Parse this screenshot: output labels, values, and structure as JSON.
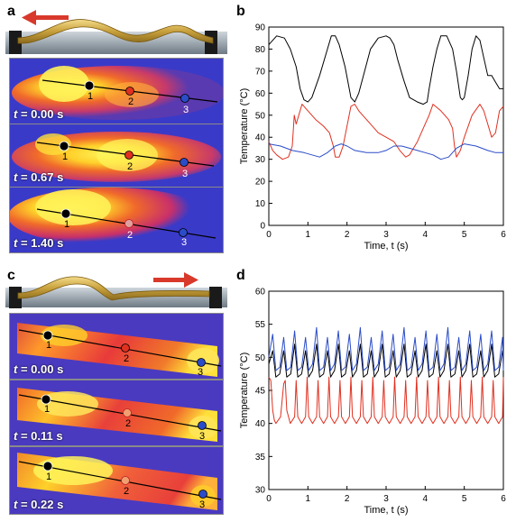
{
  "panels": {
    "a": {
      "label": "a",
      "frames": [
        {
          "time": "t = 0.00 s",
          "point_labels": [
            "1",
            "2",
            "3"
          ]
        },
        {
          "time": "t = 0.67 s",
          "point_labels": [
            "1",
            "2",
            "3"
          ]
        },
        {
          "time": "t = 1.40 s",
          "point_labels": [
            "1",
            "2",
            "3"
          ]
        }
      ]
    },
    "b": {
      "label": "b"
    },
    "c": {
      "label": "c",
      "frames": [
        {
          "time": "t = 0.00 s",
          "point_labels": [
            "1",
            "2",
            "3"
          ]
        },
        {
          "time": "t = 0.11 s",
          "point_labels": [
            "1",
            "2",
            "3"
          ]
        },
        {
          "time": "t = 0.22 s",
          "point_labels": [
            "1",
            "2",
            "3"
          ]
        }
      ]
    },
    "d": {
      "label": "d"
    }
  },
  "colors": {
    "point1": "#000000",
    "point2": "#e03020",
    "point3": "#2a4cc8"
  },
  "chart_data": [
    {
      "panel": "b",
      "type": "line",
      "xlabel": "Time, t (s)",
      "ylabel": "Temperature (°C)",
      "xlim": [
        0,
        6
      ],
      "ylim": [
        0,
        90
      ],
      "xticks": [
        0,
        1,
        2,
        3,
        4,
        5,
        6
      ],
      "yticks": [
        0,
        10,
        20,
        30,
        40,
        50,
        60,
        70,
        80,
        90
      ],
      "grid": false,
      "series": [
        {
          "color": "#000000",
          "x": [
            0,
            0.2,
            0.4,
            0.55,
            0.7,
            0.8,
            0.9,
            1.0,
            1.1,
            1.3,
            1.5,
            1.6,
            1.7,
            1.8,
            1.95,
            2.1,
            2.2,
            2.3,
            2.45,
            2.6,
            2.8,
            3.0,
            3.1,
            3.2,
            3.3,
            3.45,
            3.6,
            3.8,
            3.95,
            4.05,
            4.1,
            4.2,
            4.3,
            4.4,
            4.55,
            4.7,
            4.8,
            4.9,
            4.95,
            5.0,
            5.1,
            5.2,
            5.3,
            5.4,
            5.5,
            5.6,
            5.7,
            5.8,
            5.9,
            6.0
          ],
          "y": [
            82,
            86,
            85,
            80,
            72,
            62,
            57,
            56,
            58,
            68,
            80,
            86,
            86,
            82,
            72,
            58,
            56,
            60,
            70,
            80,
            85,
            86,
            85,
            82,
            75,
            66,
            58,
            56,
            55,
            56,
            62,
            72,
            80,
            86,
            86,
            80,
            70,
            58,
            57,
            58,
            68,
            80,
            86,
            84,
            76,
            68,
            68,
            65,
            62,
            62
          ]
        },
        {
          "color": "#e03020",
          "x": [
            0,
            0.1,
            0.2,
            0.35,
            0.5,
            0.6,
            0.65,
            0.7,
            0.85,
            1.0,
            1.2,
            1.4,
            1.55,
            1.65,
            1.7,
            1.8,
            1.9,
            2.1,
            2.2,
            2.3,
            2.4,
            2.6,
            2.8,
            3.0,
            3.2,
            3.35,
            3.5,
            3.6,
            3.8,
            4.0,
            4.1,
            4.2,
            4.4,
            4.6,
            4.7,
            4.75,
            4.8,
            4.9,
            5.0,
            5.2,
            5.4,
            5.5,
            5.6,
            5.7,
            5.8,
            5.9,
            6.0
          ],
          "y": [
            38,
            34,
            32,
            30,
            31,
            36,
            50,
            46,
            55,
            52,
            48,
            45,
            42,
            36,
            31,
            31,
            36,
            54,
            55,
            52,
            50,
            46,
            42,
            40,
            38,
            34,
            31,
            32,
            38,
            46,
            50,
            55,
            52,
            48,
            44,
            36,
            31,
            34,
            40,
            50,
            55,
            52,
            46,
            40,
            42,
            52,
            54
          ]
        },
        {
          "color": "#2a4cc8",
          "x": [
            0,
            0.3,
            0.6,
            0.9,
            1.1,
            1.3,
            1.5,
            1.7,
            1.85,
            2.0,
            2.2,
            2.5,
            2.8,
            3.0,
            3.2,
            3.4,
            3.6,
            3.8,
            4.0,
            4.2,
            4.4,
            4.6,
            4.8,
            5.0,
            5.3,
            5.6,
            5.8,
            6.0
          ],
          "y": [
            37,
            36,
            34,
            33,
            32,
            31,
            33,
            36,
            37,
            36,
            34,
            33,
            33,
            34,
            36,
            36,
            35,
            34,
            33,
            32,
            30,
            31,
            35,
            37,
            36,
            34,
            33,
            33
          ]
        }
      ]
    },
    {
      "panel": "d",
      "type": "line",
      "xlabel": "Time, t (s)",
      "ylabel": "Temperature (°C)",
      "xlim": [
        0,
        6
      ],
      "ylim": [
        30,
        60
      ],
      "xticks": [
        0,
        1,
        2,
        3,
        4,
        5,
        6
      ],
      "yticks": [
        30,
        35,
        40,
        45,
        50,
        55,
        60
      ],
      "grid": false,
      "series": [
        {
          "color": "#e03020",
          "x": [
            0,
            0.05,
            0.1,
            0.14,
            0.18,
            0.3,
            0.38,
            0.42,
            0.46,
            0.55,
            0.66,
            0.7,
            0.74,
            0.84,
            0.94,
            0.98,
            1.02,
            1.12,
            1.22,
            1.26,
            1.3,
            1.4,
            1.5,
            1.54,
            1.58,
            1.68,
            1.78,
            1.82,
            1.86,
            1.96,
            2.06,
            2.1,
            2.14,
            2.24,
            2.34,
            2.38,
            2.42,
            2.52,
            2.62,
            2.66,
            2.7,
            2.8,
            2.9,
            2.94,
            2.98,
            3.08,
            3.18,
            3.22,
            3.26,
            3.36,
            3.46,
            3.5,
            3.54,
            3.64,
            3.74,
            3.78,
            3.82,
            3.92,
            4.02,
            4.06,
            4.1,
            4.2,
            4.3,
            4.34,
            4.38,
            4.48,
            4.58,
            4.62,
            4.66,
            4.76,
            4.86,
            4.9,
            4.94,
            5.04,
            5.14,
            5.18,
            5.22,
            5.32,
            5.42,
            5.46,
            5.5,
            5.6,
            5.7,
            5.74,
            5.78,
            5.88,
            5.98,
            6.0
          ],
          "y": [
            47,
            46.5,
            42,
            40.5,
            40,
            41,
            46,
            46.5,
            42,
            40,
            41,
            46.5,
            41,
            40,
            41,
            47,
            41,
            40,
            41,
            46.5,
            41,
            40,
            41,
            47,
            41,
            40,
            41,
            46.5,
            41,
            40,
            41,
            47,
            41,
            40,
            41,
            46.5,
            41,
            40,
            41,
            47,
            41,
            40,
            41,
            46.5,
            41,
            40,
            41,
            47,
            41,
            40,
            41,
            46.5,
            41,
            40,
            41,
            47,
            41,
            40,
            41,
            46.5,
            41,
            40,
            41,
            47,
            41,
            40,
            41,
            46.5,
            41,
            40,
            41,
            47,
            41,
            40,
            41,
            46.5,
            41,
            40,
            41,
            47,
            41,
            40,
            41,
            46.5,
            41,
            40,
            41,
            47
          ]
        },
        {
          "color": "#000000",
          "x": [
            0,
            0.1,
            0.18,
            0.28,
            0.38,
            0.46,
            0.56,
            0.66,
            0.74,
            0.84,
            0.94,
            1.02,
            1.12,
            1.22,
            1.3,
            1.4,
            1.5,
            1.58,
            1.68,
            1.78,
            1.86,
            1.96,
            2.06,
            2.14,
            2.24,
            2.34,
            2.42,
            2.52,
            2.62,
            2.7,
            2.8,
            2.9,
            2.98,
            3.08,
            3.18,
            3.26,
            3.36,
            3.46,
            3.54,
            3.64,
            3.74,
            3.82,
            3.92,
            4.02,
            4.1,
            4.2,
            4.3,
            4.38,
            4.48,
            4.58,
            4.66,
            4.76,
            4.86,
            4.94,
            5.04,
            5.14,
            5.22,
            5.32,
            5.42,
            5.5,
            5.6,
            5.7,
            5.78,
            5.88,
            5.98,
            6.0
          ],
          "y": [
            49,
            51,
            47,
            47.5,
            51,
            47,
            47.5,
            52,
            47,
            47.5,
            51,
            47,
            48,
            52,
            47,
            47.5,
            51,
            47,
            48,
            52,
            47,
            47.5,
            51,
            47,
            48,
            52,
            47,
            47.5,
            51,
            47,
            48,
            52,
            47,
            47.5,
            51,
            47,
            48,
            52,
            47,
            47.5,
            51,
            47,
            48,
            52,
            47,
            47.5,
            51,
            47,
            48,
            52,
            47,
            47.5,
            51,
            47,
            48,
            52,
            47,
            47.5,
            51,
            47,
            48,
            52,
            47,
            47.5,
            51,
            49
          ]
        },
        {
          "color": "#2a4cc8",
          "x": [
            0,
            0.1,
            0.18,
            0.28,
            0.38,
            0.46,
            0.56,
            0.66,
            0.74,
            0.84,
            0.94,
            1.02,
            1.12,
            1.22,
            1.3,
            1.4,
            1.5,
            1.58,
            1.68,
            1.78,
            1.86,
            1.96,
            2.06,
            2.14,
            2.24,
            2.34,
            2.42,
            2.52,
            2.62,
            2.7,
            2.8,
            2.9,
            2.98,
            3.08,
            3.18,
            3.26,
            3.36,
            3.46,
            3.54,
            3.64,
            3.74,
            3.82,
            3.92,
            4.02,
            4.1,
            4.2,
            4.3,
            4.38,
            4.48,
            4.58,
            4.66,
            4.76,
            4.86,
            4.94,
            5.04,
            5.14,
            5.22,
            5.32,
            5.42,
            5.5,
            5.6,
            5.7,
            5.78,
            5.88,
            5.98,
            6.0
          ],
          "y": [
            50,
            53.5,
            48,
            48.5,
            53,
            48,
            48.5,
            54,
            48,
            48.5,
            53,
            48,
            49,
            54.5,
            48,
            48.5,
            53,
            48,
            49,
            54,
            48,
            48.5,
            53.5,
            48,
            49,
            54.5,
            48,
            48.5,
            53,
            48,
            49,
            54,
            48,
            48.5,
            53.5,
            48,
            49,
            54.5,
            48,
            48.5,
            53,
            48,
            49,
            54,
            48,
            48.5,
            53.5,
            48,
            49,
            54.5,
            48,
            48.5,
            53,
            48,
            49,
            54,
            48,
            48.5,
            53.5,
            48,
            49,
            54,
            48,
            48.5,
            53,
            48
          ]
        }
      ]
    }
  ]
}
